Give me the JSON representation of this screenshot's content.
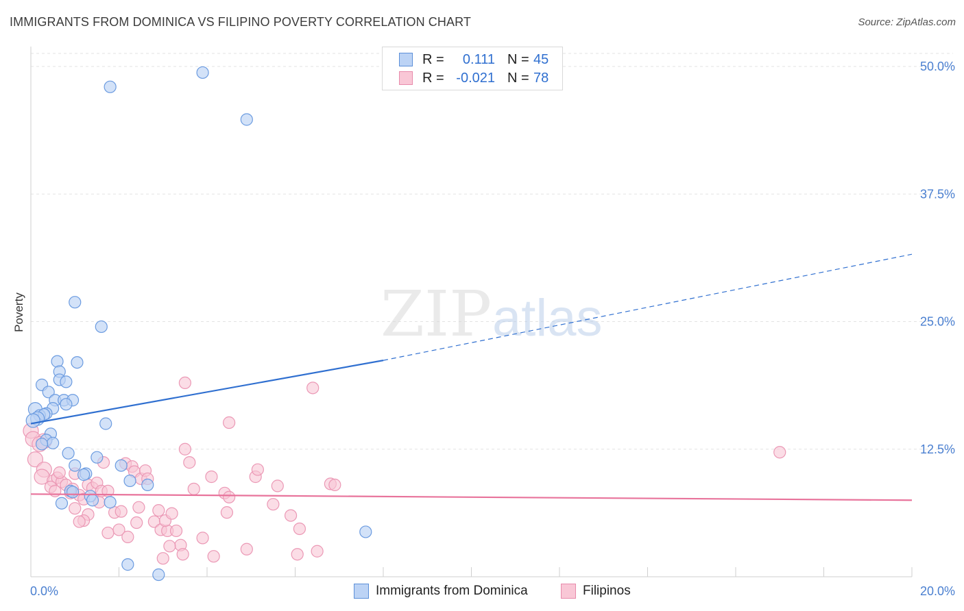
{
  "title": "IMMIGRANTS FROM DOMINICA VS FILIPINO POVERTY CORRELATION CHART",
  "source": "Source: ZipAtlas.com",
  "watermark": {
    "zip": "ZIP",
    "atlas": "atlas"
  },
  "legend": {
    "rows": [
      {
        "r_label": "R =",
        "r_value": "0.111",
        "n_label": "N =",
        "n_value": "45"
      },
      {
        "r_label": "R =",
        "r_value": "-0.021",
        "n_label": "N =",
        "n_value": "78"
      }
    ]
  },
  "bottom_legend": [
    "Immigrants from Dominica",
    "Filipinos"
  ],
  "colors": {
    "blue_fill": "#bcd3f5",
    "blue_stroke": "#6b9be0",
    "blue_line": "#2f6fd0",
    "pink_fill": "#f9c7d6",
    "pink_stroke": "#eb98b5",
    "pink_line": "#e8739b",
    "grid": "#e3e3e3",
    "axis_text": "#4a7fd0"
  },
  "chart_data": {
    "type": "scatter",
    "title": "IMMIGRANTS FROM DOMINICA VS FILIPINO POVERTY CORRELATION CHART",
    "xlabel": "",
    "ylabel": "Poverty",
    "xlim": [
      0,
      20
    ],
    "ylim": [
      0,
      50
    ],
    "x_tick_labels": [
      "0.0%",
      "20.0%"
    ],
    "y_tick_labels": [
      "50.0%",
      "37.5%",
      "25.0%",
      "12.5%"
    ],
    "y_ticks": [
      50,
      37.5,
      25,
      12.5
    ],
    "series": [
      {
        "name": "Immigrants from Dominica",
        "r": 0.111,
        "n": 45,
        "trend": {
          "x0": 0,
          "y0": 15.0,
          "x1": 8,
          "y1": 21.2,
          "dash_to_x": 20,
          "dash_to_y": 31.6
        },
        "points": [
          [
            3.9,
            49.4
          ],
          [
            1.8,
            48.0
          ],
          [
            4.9,
            44.8
          ],
          [
            1.0,
            26.9
          ],
          [
            1.6,
            24.5
          ],
          [
            0.6,
            21.1
          ],
          [
            1.05,
            21.0
          ],
          [
            0.65,
            20.1
          ],
          [
            0.65,
            19.3
          ],
          [
            0.8,
            19.1
          ],
          [
            0.25,
            18.8
          ],
          [
            0.4,
            18.1
          ],
          [
            0.55,
            17.3
          ],
          [
            0.75,
            17.3
          ],
          [
            0.95,
            17.3
          ],
          [
            0.8,
            16.9
          ],
          [
            0.5,
            16.5
          ],
          [
            0.1,
            16.4
          ],
          [
            0.35,
            16.0
          ],
          [
            0.2,
            15.8
          ],
          [
            0.3,
            15.9
          ],
          [
            0.15,
            15.5
          ],
          [
            0.05,
            15.3
          ],
          [
            1.7,
            15.0
          ],
          [
            0.45,
            14.0
          ],
          [
            0.35,
            13.4
          ],
          [
            0.5,
            13.1
          ],
          [
            0.25,
            13.0
          ],
          [
            0.85,
            12.1
          ],
          [
            1.5,
            11.7
          ],
          [
            1.0,
            10.9
          ],
          [
            2.05,
            10.9
          ],
          [
            1.25,
            10.1
          ],
          [
            1.2,
            10.0
          ],
          [
            2.25,
            9.4
          ],
          [
            2.65,
            9.0
          ],
          [
            0.9,
            8.4
          ],
          [
            0.95,
            8.3
          ],
          [
            1.35,
            7.9
          ],
          [
            1.4,
            7.5
          ],
          [
            0.7,
            7.2
          ],
          [
            1.8,
            7.3
          ],
          [
            7.6,
            4.4
          ],
          [
            2.2,
            1.2
          ],
          [
            2.9,
            0.2
          ]
        ]
      },
      {
        "name": "Filipinos",
        "r": -0.021,
        "n": 78,
        "trend": {
          "x0": 0,
          "y0": 8.1,
          "x1": 20,
          "y1": 7.5
        },
        "points": [
          [
            0.0,
            14.3
          ],
          [
            0.05,
            13.5
          ],
          [
            0.3,
            13.3
          ],
          [
            0.2,
            13.0
          ],
          [
            0.1,
            11.5
          ],
          [
            0.3,
            10.5
          ],
          [
            0.25,
            9.8
          ],
          [
            0.5,
            9.4
          ],
          [
            0.6,
            9.7
          ],
          [
            0.7,
            9.3
          ],
          [
            0.45,
            8.8
          ],
          [
            0.55,
            8.4
          ],
          [
            0.8,
            9.0
          ],
          [
            0.9,
            8.2
          ],
          [
            0.95,
            8.6
          ],
          [
            0.65,
            10.2
          ],
          [
            1.0,
            10.1
          ],
          [
            1.1,
            8.0
          ],
          [
            1.2,
            7.6
          ],
          [
            1.3,
            9.0
          ],
          [
            1.4,
            8.7
          ],
          [
            1.5,
            9.2
          ],
          [
            1.55,
            7.3
          ],
          [
            1.6,
            8.4
          ],
          [
            1.75,
            8.4
          ],
          [
            1.65,
            11.2
          ],
          [
            1.3,
            6.1
          ],
          [
            1.2,
            5.5
          ],
          [
            1.0,
            6.7
          ],
          [
            1.1,
            5.4
          ],
          [
            1.75,
            4.3
          ],
          [
            1.9,
            6.3
          ],
          [
            2.0,
            4.6
          ],
          [
            2.05,
            6.4
          ],
          [
            2.2,
            3.9
          ],
          [
            2.15,
            11.1
          ],
          [
            2.3,
            10.8
          ],
          [
            2.35,
            10.3
          ],
          [
            2.5,
            9.6
          ],
          [
            2.6,
            10.4
          ],
          [
            2.65,
            9.6
          ],
          [
            2.45,
            6.8
          ],
          [
            2.4,
            5.3
          ],
          [
            2.8,
            5.4
          ],
          [
            2.9,
            6.5
          ],
          [
            2.95,
            4.6
          ],
          [
            3.1,
            4.5
          ],
          [
            3.05,
            5.5
          ],
          [
            3.2,
            6.2
          ],
          [
            3.3,
            4.5
          ],
          [
            3.4,
            3.1
          ],
          [
            3.45,
            2.2
          ],
          [
            3.15,
            3.0
          ],
          [
            3.0,
            1.8
          ],
          [
            3.5,
            12.5
          ],
          [
            3.6,
            11.2
          ],
          [
            3.7,
            8.6
          ],
          [
            3.5,
            19.0
          ],
          [
            4.1,
            9.8
          ],
          [
            4.4,
            8.2
          ],
          [
            4.5,
            7.8
          ],
          [
            4.45,
            6.3
          ],
          [
            4.5,
            15.1
          ],
          [
            4.9,
            2.7
          ],
          [
            5.1,
            9.8
          ],
          [
            5.15,
            10.5
          ],
          [
            5.6,
            8.9
          ],
          [
            5.5,
            7.1
          ],
          [
            5.9,
            6.0
          ],
          [
            6.1,
            4.7
          ],
          [
            6.05,
            2.2
          ],
          [
            6.4,
            18.5
          ],
          [
            6.5,
            2.5
          ],
          [
            6.8,
            9.1
          ],
          [
            6.9,
            9.0
          ],
          [
            3.9,
            3.8
          ],
          [
            4.15,
            2.0
          ],
          [
            17.0,
            12.2
          ]
        ]
      }
    ]
  }
}
